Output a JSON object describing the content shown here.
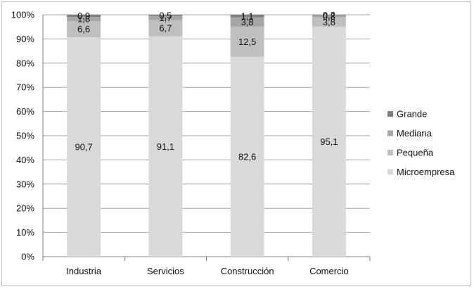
{
  "chart_data": {
    "type": "bar",
    "stacked": true,
    "categories": [
      "Industria",
      "Servicios",
      "Construcción",
      "Comercio"
    ],
    "series": [
      {
        "name": "Microempresa",
        "values": [
          90.7,
          91.1,
          82.6,
          95.1
        ],
        "labels": [
          "90,7",
          "91,1",
          "82,6",
          "95,1"
        ],
        "color": "#d9d9d9"
      },
      {
        "name": "Pequeña",
        "values": [
          6.6,
          6.7,
          12.5,
          3.8
        ],
        "labels": [
          "6,6",
          "6,7",
          "12,5",
          "3,8"
        ],
        "color": "#bfbfbf"
      },
      {
        "name": "Mediana",
        "values": [
          1.8,
          1.7,
          3.8,
          0.8
        ],
        "labels": [
          "1,8",
          "1,7",
          "3,8",
          "0,8"
        ],
        "color": "#a6a6a6"
      },
      {
        "name": "Grande",
        "values": [
          0.9,
          0.5,
          1.1,
          0.2
        ],
        "labels": [
          "0,9",
          "0,5",
          "1,1",
          "0,2"
        ],
        "color": "#7f7f7f"
      }
    ],
    "yticks": [
      "0%",
      "10%",
      "20%",
      "30%",
      "40%",
      "50%",
      "60%",
      "70%",
      "80%",
      "90%",
      "100%"
    ],
    "ylim": [
      0,
      100
    ],
    "grid": true,
    "legend": "right",
    "legend_order": [
      "Grande",
      "Mediana",
      "Pequeña",
      "Microempresa"
    ]
  }
}
